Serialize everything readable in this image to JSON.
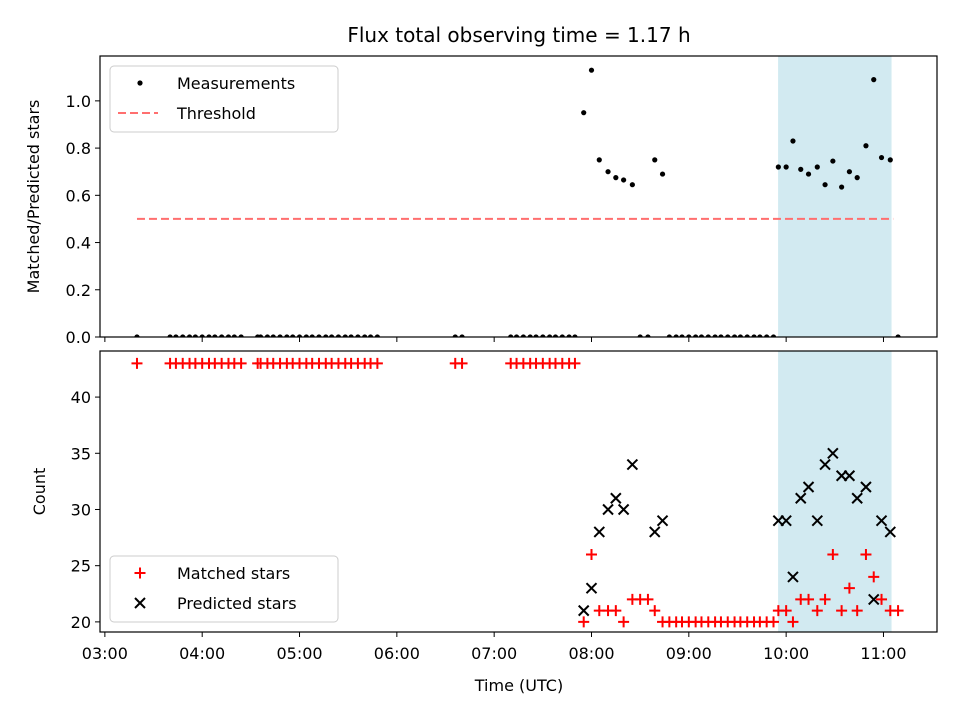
{
  "colors": {
    "measurement": "#000000",
    "threshold": "#ff6f6f",
    "matched": "#ff0000",
    "predicted": "#000000",
    "highlight": "#add8e6"
  },
  "chart_data": {
    "title": "Flux total observing time = 1.17 h",
    "xlabel": "Time (UTC)",
    "x_ticks": [
      "03:00",
      "04:00",
      "05:00",
      "06:00",
      "07:00",
      "08:00",
      "09:00",
      "10:00",
      "11:00"
    ],
    "x_tick_values": [
      3.0,
      4.0,
      5.0,
      6.0,
      7.0,
      8.0,
      9.0,
      10.0,
      11.0
    ],
    "xlim": [
      2.95,
      11.55
    ],
    "highlight_span": [
      9.917,
      11.083
    ],
    "panels": [
      {
        "type": "scatter",
        "ylabel": "Matched/Predicted stars",
        "ylim": [
          0.0,
          1.19
        ],
        "yticks": [
          "0.0",
          "0.2",
          "0.4",
          "0.6",
          "0.8",
          "1.0"
        ],
        "ytick_values": [
          0.0,
          0.2,
          0.4,
          0.6,
          0.8,
          1.0
        ],
        "legend": {
          "placement": "upper-left",
          "entries": [
            "Measurements",
            "Threshold"
          ]
        },
        "series": [
          {
            "name": "Measurements",
            "marker": "dot",
            "x": [
              3.33,
              3.67,
              3.73,
              3.8,
              3.87,
              3.93,
              4.0,
              4.07,
              4.13,
              4.2,
              4.27,
              4.33,
              4.4,
              4.57,
              4.6,
              4.67,
              4.73,
              4.8,
              4.87,
              4.93,
              5.0,
              5.07,
              5.13,
              5.2,
              5.27,
              5.33,
              5.4,
              5.47,
              5.53,
              5.6,
              5.67,
              5.73,
              5.8,
              6.6,
              6.67,
              7.17,
              7.23,
              7.3,
              7.37,
              7.43,
              7.5,
              7.57,
              7.63,
              7.7,
              7.77,
              7.83,
              7.92,
              8.0,
              8.08,
              8.17,
              8.25,
              8.33,
              8.42,
              8.5,
              8.58,
              8.65,
              8.73,
              8.8,
              8.87,
              8.93,
              9.0,
              9.07,
              9.13,
              9.2,
              9.27,
              9.33,
              9.4,
              9.47,
              9.53,
              9.6,
              9.67,
              9.73,
              9.8,
              9.87,
              9.92,
              10.0,
              10.07,
              10.15,
              10.23,
              10.32,
              10.4,
              10.48,
              10.57,
              10.65,
              10.73,
              10.82,
              10.9,
              10.98,
              11.07,
              11.15
            ],
            "y": [
              0,
              0,
              0,
              0,
              0,
              0,
              0,
              0,
              0,
              0,
              0,
              0,
              0,
              0,
              0,
              0,
              0,
              0,
              0,
              0,
              0,
              0,
              0,
              0,
              0,
              0,
              0,
              0,
              0,
              0,
              0,
              0,
              0,
              0,
              0,
              0,
              0,
              0,
              0,
              0,
              0,
              0,
              0,
              0,
              0,
              0,
              0.95,
              1.13,
              0.75,
              0.7,
              0.675,
              0.665,
              0.645,
              0,
              0,
              0.75,
              0.69,
              0,
              0,
              0,
              0,
              0,
              0,
              0,
              0,
              0,
              0,
              0,
              0,
              0,
              0,
              0,
              0,
              0,
              0.72,
              0.72,
              0.83,
              0.71,
              0.69,
              0.72,
              0.645,
              0.745,
              0.635,
              0.7,
              0.675,
              0.81,
              1.09,
              0.76,
              0.75,
              0
            ]
          },
          {
            "name": "Threshold",
            "style": "dashed",
            "x": [
              3.33,
              11.1
            ],
            "y": [
              0.5,
              0.5
            ]
          }
        ]
      },
      {
        "type": "scatter",
        "ylabel": "Count",
        "ylim": [
          19.1,
          44.1
        ],
        "yticks": [
          "20",
          "25",
          "30",
          "35",
          "40"
        ],
        "ytick_values": [
          20,
          25,
          30,
          35,
          40
        ],
        "legend": {
          "placement": "lower-left",
          "entries": [
            "Matched stars",
            "Predicted stars"
          ]
        },
        "series": [
          {
            "name": "Matched stars",
            "marker": "plus",
            "x": [
              3.33,
              3.67,
              3.73,
              3.8,
              3.87,
              3.93,
              4.0,
              4.07,
              4.13,
              4.2,
              4.27,
              4.33,
              4.4,
              4.57,
              4.6,
              4.67,
              4.73,
              4.8,
              4.87,
              4.93,
              5.0,
              5.07,
              5.13,
              5.2,
              5.27,
              5.33,
              5.4,
              5.47,
              5.53,
              5.6,
              5.67,
              5.73,
              5.8,
              6.6,
              6.67,
              7.17,
              7.23,
              7.3,
              7.37,
              7.43,
              7.5,
              7.57,
              7.63,
              7.7,
              7.77,
              7.83,
              7.92,
              8.0,
              8.08,
              8.17,
              8.25,
              8.33,
              8.42,
              8.5,
              8.58,
              8.65,
              8.73,
              8.8,
              8.87,
              8.93,
              9.0,
              9.07,
              9.13,
              9.2,
              9.27,
              9.33,
              9.4,
              9.47,
              9.53,
              9.6,
              9.67,
              9.73,
              9.8,
              9.87,
              9.92,
              10.0,
              10.07,
              10.15,
              10.23,
              10.32,
              10.4,
              10.48,
              10.57,
              10.65,
              10.73,
              10.82,
              10.9,
              10.98,
              11.07,
              11.15
            ],
            "y": [
              43,
              43,
              43,
              43,
              43,
              43,
              43,
              43,
              43,
              43,
              43,
              43,
              43,
              43,
              43,
              43,
              43,
              43,
              43,
              43,
              43,
              43,
              43,
              43,
              43,
              43,
              43,
              43,
              43,
              43,
              43,
              43,
              43,
              43,
              43,
              43,
              43,
              43,
              43,
              43,
              43,
              43,
              43,
              43,
              43,
              43,
              20,
              26,
              21,
              21,
              21,
              20,
              22,
              22,
              22,
              21,
              20,
              20,
              20,
              20,
              20,
              20,
              20,
              20,
              20,
              20,
              20,
              20,
              20,
              20,
              20,
              20,
              20,
              20,
              21,
              21,
              20,
              22,
              22,
              21,
              22,
              26,
              21,
              23,
              21,
              26,
              24,
              22,
              21,
              21
            ]
          },
          {
            "name": "Predicted stars",
            "marker": "x",
            "x": [
              7.92,
              8.0,
              8.08,
              8.17,
              8.25,
              8.33,
              8.42,
              8.65,
              8.73,
              9.92,
              10.0,
              10.07,
              10.15,
              10.23,
              10.32,
              10.4,
              10.48,
              10.57,
              10.65,
              10.73,
              10.82,
              10.9,
              10.98,
              11.07
            ],
            "y": [
              21,
              23,
              28,
              30,
              31,
              30,
              34,
              28,
              29,
              29,
              29,
              24,
              31,
              32,
              29,
              34,
              35,
              33,
              33,
              31,
              32,
              22,
              29,
              28
            ]
          }
        ]
      }
    ]
  }
}
